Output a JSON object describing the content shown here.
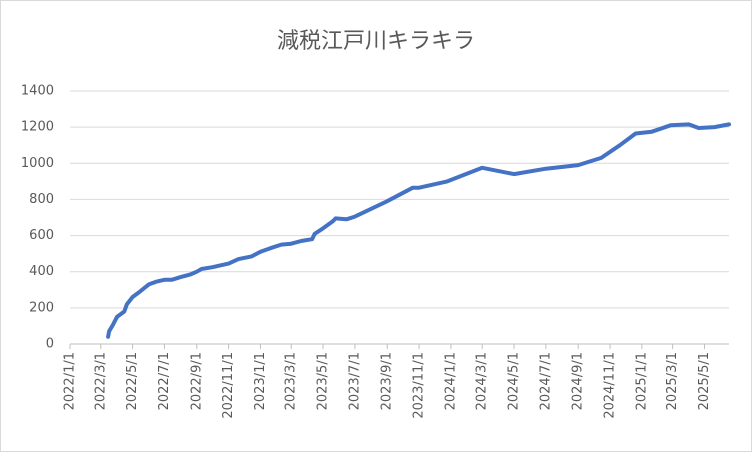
{
  "chart_data": {
    "type": "line",
    "title": "減税江戸川キラキラ",
    "x": [
      "2022/3/15",
      "2022/3/17",
      "2022/3/25",
      "2022/4/1",
      "2022/4/15",
      "2022/4/20",
      "2022/5/1",
      "2022/5/15",
      "2022/6/1",
      "2022/6/15",
      "2022/7/1",
      "2022/7/15",
      "2022/8/1",
      "2022/8/20",
      "2022/9/1",
      "2022/9/10",
      "2022/10/1",
      "2022/11/1",
      "2022/11/20",
      "2022/12/15",
      "2023/1/1",
      "2023/1/20",
      "2023/2/10",
      "2023/3/1",
      "2023/3/20",
      "2023/4/10",
      "2023/4/15",
      "2023/5/1",
      "2023/5/20",
      "2023/5/25",
      "2023/6/15",
      "2023/7/1",
      "2023/9/1",
      "2023/10/20",
      "2023/11/1",
      "2023/12/25",
      "2024/3/1",
      "2024/5/1",
      "2024/7/1",
      "2024/9/1",
      "2024/10/15",
      "2024/11/20",
      "2024/12/20",
      "2025/1/20",
      "2025/2/25",
      "2025/4/1",
      "2025/4/20",
      "2025/5/20",
      "2025/6/17"
    ],
    "series": [
      {
        "color": "#4472c4",
        "values": [
          40,
          70,
          110,
          150,
          180,
          220,
          260,
          290,
          330,
          345,
          355,
          355,
          370,
          385,
          400,
          415,
          425,
          445,
          470,
          485,
          510,
          530,
          550,
          555,
          570,
          580,
          610,
          640,
          680,
          695,
          690,
          705,
          790,
          865,
          865,
          900,
          975,
          940,
          970,
          990,
          1030,
          1100,
          1165,
          1175,
          1210,
          1215,
          1195,
          1200,
          1215
        ]
      }
    ],
    "xlim": [
      "2022/1/1",
      "2025/6/17"
    ],
    "xticks": [
      "2022/1/1",
      "2022/3/1",
      "2022/5/1",
      "2022/7/1",
      "2022/9/1",
      "2022/11/1",
      "2023/1/1",
      "2023/3/1",
      "2023/5/1",
      "2023/7/1",
      "2023/9/1",
      "2023/11/1",
      "2024/1/1",
      "2024/3/1",
      "2024/5/1",
      "2024/7/1",
      "2024/9/1",
      "2024/11/1",
      "2025/1/1",
      "2025/3/1",
      "2025/5/1"
    ],
    "ylim": [
      0,
      1400
    ],
    "yticks": [
      0,
      200,
      400,
      600,
      800,
      1000,
      1200,
      1400
    ],
    "grid": true
  }
}
